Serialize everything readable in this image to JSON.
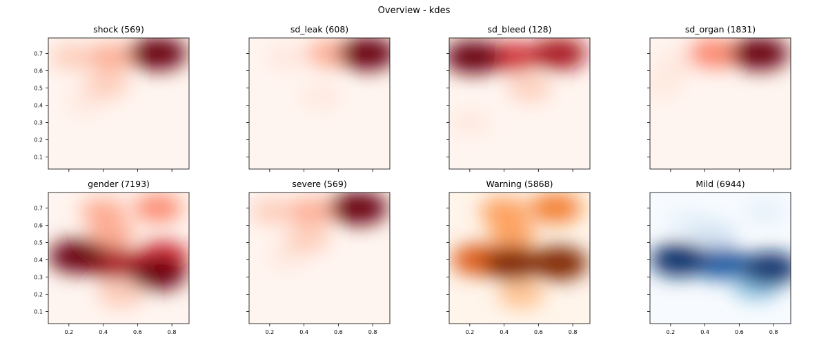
{
  "figure": {
    "title": "Overview - kdes"
  },
  "chart_data": [
    {
      "type": "heatmap",
      "title": "shock (569)",
      "colormap": "Reds",
      "xlim": [
        0.08,
        0.9
      ],
      "ylim": [
        0.03,
        0.79
      ],
      "xticks": [
        "0.2",
        "0.4",
        "0.6",
        "0.8"
      ],
      "yticks": [
        "0.1",
        "0.2",
        "0.3",
        "0.4",
        "0.5",
        "0.6",
        "0.7"
      ],
      "density_peaks": [
        {
          "x": 0.72,
          "y": 0.7,
          "intensity": 1.0
        },
        {
          "x": 0.45,
          "y": 0.68,
          "intensity": 0.35
        },
        {
          "x": 0.22,
          "y": 0.68,
          "intensity": 0.25
        },
        {
          "x": 0.42,
          "y": 0.52,
          "intensity": 0.25
        },
        {
          "x": 0.3,
          "y": 0.42,
          "intensity": 0.08
        }
      ]
    },
    {
      "type": "heatmap",
      "title": "sd_leak (608)",
      "colormap": "Reds",
      "xlim": [
        0.08,
        0.9
      ],
      "ylim": [
        0.03,
        0.79
      ],
      "xticks": [
        "0.2",
        "0.4",
        "0.6",
        "0.8"
      ],
      "yticks": [
        "0.1",
        "0.2",
        "0.3",
        "0.4",
        "0.5",
        "0.6",
        "0.7"
      ],
      "density_peaks": [
        {
          "x": 0.77,
          "y": 0.7,
          "intensity": 1.0
        },
        {
          "x": 0.55,
          "y": 0.7,
          "intensity": 0.35
        },
        {
          "x": 0.3,
          "y": 0.68,
          "intensity": 0.12
        },
        {
          "x": 0.5,
          "y": 0.45,
          "intensity": 0.05
        }
      ]
    },
    {
      "type": "heatmap",
      "title": "sd_bleed (128)",
      "colormap": "Reds",
      "xlim": [
        0.08,
        0.9
      ],
      "ylim": [
        0.03,
        0.79
      ],
      "xticks": [
        "0.2",
        "0.4",
        "0.6",
        "0.8"
      ],
      "yticks": [
        "0.1",
        "0.2",
        "0.3",
        "0.4",
        "0.5",
        "0.6",
        "0.7"
      ],
      "density_peaks": [
        {
          "x": 0.22,
          "y": 0.68,
          "intensity": 1.0
        },
        {
          "x": 0.45,
          "y": 0.68,
          "intensity": 0.7
        },
        {
          "x": 0.72,
          "y": 0.7,
          "intensity": 0.9
        },
        {
          "x": 0.55,
          "y": 0.5,
          "intensity": 0.2
        },
        {
          "x": 0.2,
          "y": 0.3,
          "intensity": 0.06
        }
      ]
    },
    {
      "type": "heatmap",
      "title": "sd_organ (1831)",
      "colormap": "Reds",
      "xlim": [
        0.08,
        0.9
      ],
      "ylim": [
        0.03,
        0.79
      ],
      "xticks": [
        "0.2",
        "0.4",
        "0.6",
        "0.8"
      ],
      "yticks": [
        "0.1",
        "0.2",
        "0.3",
        "0.4",
        "0.5",
        "0.6",
        "0.7"
      ],
      "density_peaks": [
        {
          "x": 0.72,
          "y": 0.7,
          "intensity": 1.0
        },
        {
          "x": 0.45,
          "y": 0.7,
          "intensity": 0.55
        },
        {
          "x": 0.25,
          "y": 0.65,
          "intensity": 0.12
        },
        {
          "x": 0.15,
          "y": 0.52,
          "intensity": 0.05
        }
      ]
    },
    {
      "type": "heatmap",
      "title": "gender (7193)",
      "colormap": "Reds",
      "xlim": [
        0.08,
        0.9
      ],
      "ylim": [
        0.03,
        0.79
      ],
      "xticks": [
        "0.2",
        "0.4",
        "0.6",
        "0.8"
      ],
      "yticks": [
        "0.1",
        "0.2",
        "0.3",
        "0.4",
        "0.5",
        "0.6",
        "0.7"
      ],
      "density_peaks": [
        {
          "x": 0.25,
          "y": 0.42,
          "intensity": 1.0
        },
        {
          "x": 0.45,
          "y": 0.38,
          "intensity": 0.85
        },
        {
          "x": 0.72,
          "y": 0.32,
          "intensity": 0.95
        },
        {
          "x": 0.75,
          "y": 0.42,
          "intensity": 0.7
        },
        {
          "x": 0.72,
          "y": 0.7,
          "intensity": 0.45
        },
        {
          "x": 0.4,
          "y": 0.68,
          "intensity": 0.35
        },
        {
          "x": 0.45,
          "y": 0.55,
          "intensity": 0.35
        },
        {
          "x": 0.5,
          "y": 0.2,
          "intensity": 0.3
        }
      ]
    },
    {
      "type": "heatmap",
      "title": "severe (569)",
      "colormap": "Reds",
      "xlim": [
        0.08,
        0.9
      ],
      "ylim": [
        0.03,
        0.79
      ],
      "xticks": [
        "0.2",
        "0.4",
        "0.6",
        "0.8"
      ],
      "yticks": [
        "0.1",
        "0.2",
        "0.3",
        "0.4",
        "0.5",
        "0.6",
        "0.7"
      ],
      "density_peaks": [
        {
          "x": 0.72,
          "y": 0.7,
          "intensity": 1.0
        },
        {
          "x": 0.45,
          "y": 0.68,
          "intensity": 0.35
        },
        {
          "x": 0.22,
          "y": 0.68,
          "intensity": 0.25
        },
        {
          "x": 0.42,
          "y": 0.52,
          "intensity": 0.25
        },
        {
          "x": 0.3,
          "y": 0.42,
          "intensity": 0.08
        }
      ]
    },
    {
      "type": "heatmap",
      "title": "Warning (5868)",
      "colormap": "Oranges",
      "xlim": [
        0.08,
        0.9
      ],
      "ylim": [
        0.03,
        0.79
      ],
      "xticks": [
        "0.2",
        "0.4",
        "0.6",
        "0.8"
      ],
      "yticks": [
        "0.1",
        "0.2",
        "0.3",
        "0.4",
        "0.5",
        "0.6",
        "0.7"
      ],
      "density_peaks": [
        {
          "x": 0.45,
          "y": 0.38,
          "intensity": 1.0
        },
        {
          "x": 0.72,
          "y": 0.38,
          "intensity": 1.0
        },
        {
          "x": 0.25,
          "y": 0.4,
          "intensity": 0.75
        },
        {
          "x": 0.7,
          "y": 0.7,
          "intensity": 0.65
        },
        {
          "x": 0.4,
          "y": 0.68,
          "intensity": 0.5
        },
        {
          "x": 0.45,
          "y": 0.55,
          "intensity": 0.45
        },
        {
          "x": 0.5,
          "y": 0.2,
          "intensity": 0.35
        }
      ]
    },
    {
      "type": "heatmap",
      "title": "Mild (6944)",
      "colormap": "Blues",
      "xlim": [
        0.08,
        0.9
      ],
      "ylim": [
        0.03,
        0.79
      ],
      "xticks": [
        "0.2",
        "0.4",
        "0.6",
        "0.8"
      ],
      "yticks": [
        "0.1",
        "0.2",
        "0.3",
        "0.4",
        "0.5",
        "0.6",
        "0.7"
      ],
      "density_peaks": [
        {
          "x": 0.25,
          "y": 0.4,
          "intensity": 1.0
        },
        {
          "x": 0.5,
          "y": 0.38,
          "intensity": 0.85
        },
        {
          "x": 0.78,
          "y": 0.35,
          "intensity": 0.95
        },
        {
          "x": 0.7,
          "y": 0.25,
          "intensity": 0.45
        },
        {
          "x": 0.45,
          "y": 0.55,
          "intensity": 0.25
        },
        {
          "x": 0.75,
          "y": 0.68,
          "intensity": 0.15
        },
        {
          "x": 0.3,
          "y": 0.62,
          "intensity": 0.15
        }
      ]
    }
  ],
  "colormaps": {
    "Reds": [
      "#fff5f0",
      "#fee0d2",
      "#fcbba1",
      "#fc9272",
      "#fb6a4a",
      "#ef3b2c",
      "#cb181d",
      "#a50f15",
      "#67000d"
    ],
    "Oranges": [
      "#fff5eb",
      "#fee6ce",
      "#fdd0a2",
      "#fdae6b",
      "#fd8d3c",
      "#f16913",
      "#d94801",
      "#a63603",
      "#7f2704"
    ],
    "Blues": [
      "#f7fbff",
      "#deebf7",
      "#c6dbef",
      "#9ecae1",
      "#6baed6",
      "#4292c6",
      "#2171b5",
      "#08519c",
      "#08306b"
    ]
  }
}
